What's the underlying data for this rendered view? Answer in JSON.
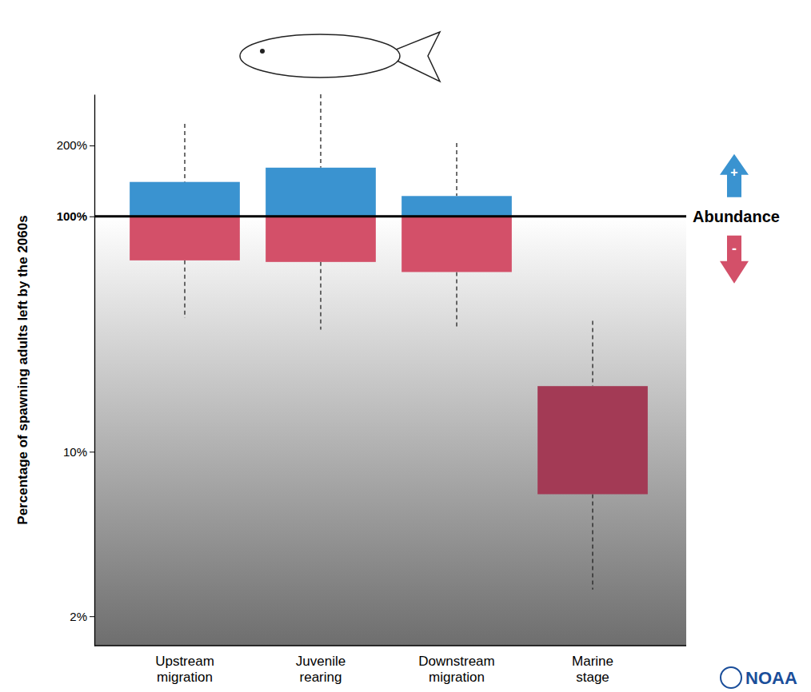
{
  "chart_data": {
    "type": "box",
    "y_label": "Percentage of spawning adults left by the 2060s",
    "categories": [
      "Upstream migration",
      "Juvenile rearing",
      "Downstream migration",
      "Marine stage"
    ],
    "whisker_low": [
      37,
      33,
      33,
      2.6
    ],
    "box_low": [
      65,
      64,
      58,
      6.6
    ],
    "box_high": [
      140,
      161,
      122,
      19
    ],
    "whisker_high": [
      247,
      330,
      205,
      36
    ],
    "reference_line": {
      "value": 100
    },
    "annotation": "Abundance",
    "arrow_labels": [
      "+",
      "-"
    ],
    "color": "#3a93d0",
    "colors": [
      "#d35069",
      "#d35069",
      "#d35069",
      "#a33a55"
    ],
    "log": "y",
    "grid": false,
    "ylim": [
      1.5,
      330
    ],
    "yticks": [
      {
        "value": 2,
        "label": "2%"
      },
      {
        "value": 10,
        "label": "10%"
      },
      {
        "value": 100,
        "label": "100%"
      },
      {
        "value": 200,
        "label": "200%"
      }
    ],
    "source": "NOAA"
  }
}
